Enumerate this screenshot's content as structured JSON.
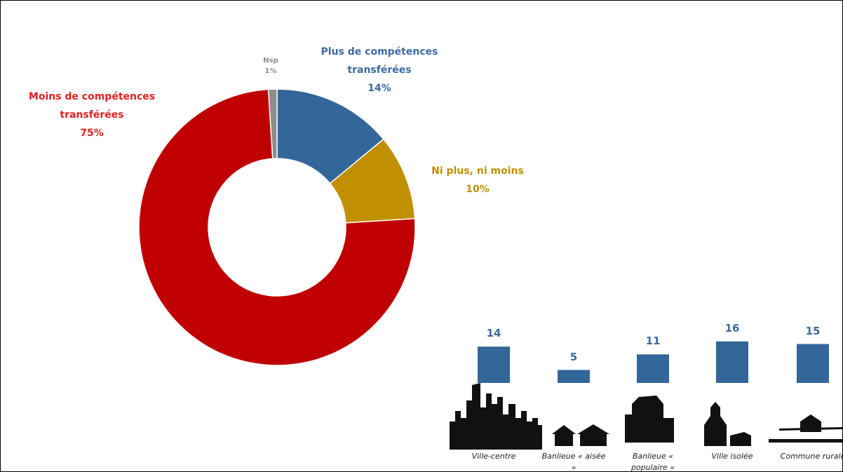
{
  "chart_data": [
    {
      "type": "pie",
      "donut": true,
      "categories": [
        "Plus de compétences transférées",
        "Ni plus, ni moins",
        "Moins de compétences transférées",
        "Nsp"
      ],
      "values": [
        14,
        10,
        75,
        1
      ],
      "value_labels": [
        "14%",
        "10%",
        "75%",
        "1%"
      ],
      "colors": [
        "#336699",
        "#c09000",
        "#c00000",
        "#8c8c8c"
      ],
      "label_colors": [
        "#3d6aa0",
        "#c09000",
        "#e0201f",
        "#8c8c8c"
      ]
    },
    {
      "type": "bar",
      "categories": [
        "Ville-centre",
        "Banlieue « aisée »",
        "Banlieue « populaire »",
        "Ville isolée",
        "Commune rurale"
      ],
      "values": [
        14,
        5,
        11,
        16,
        15
      ],
      "color": "#336699"
    }
  ]
}
